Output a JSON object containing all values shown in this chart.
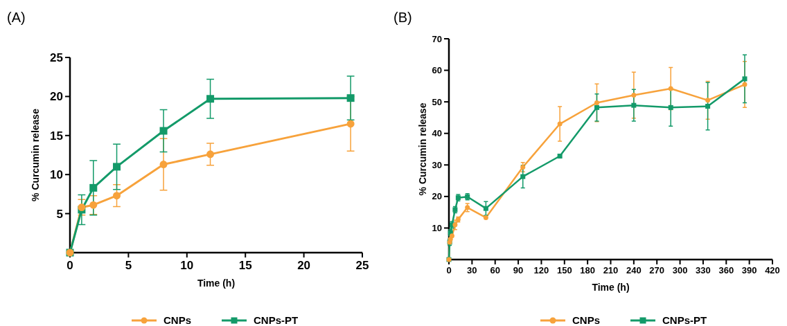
{
  "chart_data": [
    {
      "type": "line",
      "title": "(A)",
      "xlabel": "Time (h)",
      "ylabel": "% Curcumin release",
      "xlim": [
        0,
        25
      ],
      "xticks": [
        0,
        5,
        10,
        15,
        20,
        25
      ],
      "ylim": [
        0,
        25
      ],
      "yticks": [
        5,
        10,
        15,
        20,
        25
      ],
      "legend": "bottom",
      "grid": false,
      "series": [
        {
          "name": "CNPs",
          "color": "#f7a23b",
          "marker": "circle",
          "x": [
            0,
            1,
            2,
            4,
            8,
            12,
            24
          ],
          "values": [
            0,
            5.8,
            6.1,
            7.3,
            11.3,
            12.6,
            16.5
          ],
          "errors": [
            null,
            1,
            1.2,
            1.4,
            3.3,
            1.4,
            3.5
          ]
        },
        {
          "name": "CNPs-PT",
          "color": "#139a69",
          "marker": "square",
          "x": [
            0,
            1,
            2,
            4,
            8,
            12,
            24
          ],
          "values": [
            0,
            5.5,
            8.3,
            11,
            15.6,
            19.7,
            19.8
          ],
          "errors": [
            null,
            1.9,
            3.5,
            2.9,
            2.7,
            2.5,
            2.8
          ]
        }
      ]
    },
    {
      "type": "line",
      "title": "(B)",
      "xlabel": "Time (h)",
      "ylabel": "% Curcumin release",
      "xlim": [
        0,
        420
      ],
      "xticks": [
        0,
        30,
        60,
        90,
        120,
        150,
        180,
        210,
        240,
        270,
        300,
        330,
        360,
        390,
        420
      ],
      "ylim": [
        0,
        70
      ],
      "yticks": [
        10,
        20,
        30,
        40,
        50,
        60,
        70
      ],
      "legend": "bottom",
      "grid": false,
      "series": [
        {
          "name": "CNPs",
          "color": "#f7a23b",
          "marker": "circle",
          "x": [
            0,
            1,
            2,
            4,
            8,
            12,
            24,
            48,
            96,
            144,
            192,
            240,
            288,
            336,
            384
          ],
          "values": [
            0,
            5.5,
            6.5,
            7.5,
            11,
            12.7,
            16.5,
            13.3,
            29.3,
            43,
            49.7,
            52.1,
            54.2,
            50.5,
            55.5
          ],
          "errors": [
            null,
            null,
            null,
            null,
            1.5,
            0.8,
            1.3,
            null,
            1.5,
            5.5,
            6,
            7.3,
            6.7,
            6,
            7.3
          ]
        },
        {
          "name": "CNPs-PT",
          "color": "#139a69",
          "marker": "square",
          "x": [
            0,
            1,
            2,
            4,
            8,
            12,
            24,
            48,
            96,
            144,
            192,
            240,
            288,
            336,
            384
          ],
          "values": [
            0,
            5.5,
            8.5,
            11,
            15.8,
            19.6,
            19.9,
            16.2,
            26.3,
            32.8,
            48.2,
            48.9,
            48.2,
            48.6,
            57.3
          ],
          "errors": [
            null,
            1,
            1,
            1,
            1,
            1,
            1,
            2.2,
            3.6,
            0.3,
            4.3,
            5,
            5.9,
            7.5,
            7.6
          ]
        }
      ]
    }
  ]
}
